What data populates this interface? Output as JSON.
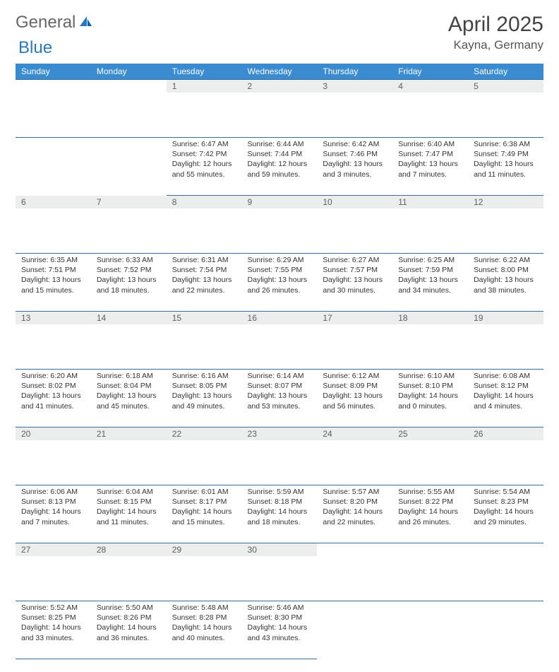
{
  "brand": {
    "part1": "General",
    "part2": "Blue"
  },
  "title": "April 2025",
  "location": "Kayna, Germany",
  "dayHeaders": [
    "Sunday",
    "Monday",
    "Tuesday",
    "Wednesday",
    "Thursday",
    "Friday",
    "Saturday"
  ],
  "colors": {
    "header_bg": "#3a8bd0",
    "header_fg": "#ffffff",
    "daynum_bg": "#eceeee",
    "daynum_fg": "#5a5e62",
    "border": "#3a6a9a",
    "brand_blue": "#2b78c2"
  },
  "weeks": [
    [
      null,
      null,
      {
        "n": "1",
        "sr": "Sunrise: 6:47 AM",
        "ss": "Sunset: 7:42 PM",
        "dl": "Daylight: 12 hours and 55 minutes."
      },
      {
        "n": "2",
        "sr": "Sunrise: 6:44 AM",
        "ss": "Sunset: 7:44 PM",
        "dl": "Daylight: 12 hours and 59 minutes."
      },
      {
        "n": "3",
        "sr": "Sunrise: 6:42 AM",
        "ss": "Sunset: 7:46 PM",
        "dl": "Daylight: 13 hours and 3 minutes."
      },
      {
        "n": "4",
        "sr": "Sunrise: 6:40 AM",
        "ss": "Sunset: 7:47 PM",
        "dl": "Daylight: 13 hours and 7 minutes."
      },
      {
        "n": "5",
        "sr": "Sunrise: 6:38 AM",
        "ss": "Sunset: 7:49 PM",
        "dl": "Daylight: 13 hours and 11 minutes."
      }
    ],
    [
      {
        "n": "6",
        "sr": "Sunrise: 6:35 AM",
        "ss": "Sunset: 7:51 PM",
        "dl": "Daylight: 13 hours and 15 minutes."
      },
      {
        "n": "7",
        "sr": "Sunrise: 6:33 AM",
        "ss": "Sunset: 7:52 PM",
        "dl": "Daylight: 13 hours and 18 minutes."
      },
      {
        "n": "8",
        "sr": "Sunrise: 6:31 AM",
        "ss": "Sunset: 7:54 PM",
        "dl": "Daylight: 13 hours and 22 minutes."
      },
      {
        "n": "9",
        "sr": "Sunrise: 6:29 AM",
        "ss": "Sunset: 7:55 PM",
        "dl": "Daylight: 13 hours and 26 minutes."
      },
      {
        "n": "10",
        "sr": "Sunrise: 6:27 AM",
        "ss": "Sunset: 7:57 PM",
        "dl": "Daylight: 13 hours and 30 minutes."
      },
      {
        "n": "11",
        "sr": "Sunrise: 6:25 AM",
        "ss": "Sunset: 7:59 PM",
        "dl": "Daylight: 13 hours and 34 minutes."
      },
      {
        "n": "12",
        "sr": "Sunrise: 6:22 AM",
        "ss": "Sunset: 8:00 PM",
        "dl": "Daylight: 13 hours and 38 minutes."
      }
    ],
    [
      {
        "n": "13",
        "sr": "Sunrise: 6:20 AM",
        "ss": "Sunset: 8:02 PM",
        "dl": "Daylight: 13 hours and 41 minutes."
      },
      {
        "n": "14",
        "sr": "Sunrise: 6:18 AM",
        "ss": "Sunset: 8:04 PM",
        "dl": "Daylight: 13 hours and 45 minutes."
      },
      {
        "n": "15",
        "sr": "Sunrise: 6:16 AM",
        "ss": "Sunset: 8:05 PM",
        "dl": "Daylight: 13 hours and 49 minutes."
      },
      {
        "n": "16",
        "sr": "Sunrise: 6:14 AM",
        "ss": "Sunset: 8:07 PM",
        "dl": "Daylight: 13 hours and 53 minutes."
      },
      {
        "n": "17",
        "sr": "Sunrise: 6:12 AM",
        "ss": "Sunset: 8:09 PM",
        "dl": "Daylight: 13 hours and 56 minutes."
      },
      {
        "n": "18",
        "sr": "Sunrise: 6:10 AM",
        "ss": "Sunset: 8:10 PM",
        "dl": "Daylight: 14 hours and 0 minutes."
      },
      {
        "n": "19",
        "sr": "Sunrise: 6:08 AM",
        "ss": "Sunset: 8:12 PM",
        "dl": "Daylight: 14 hours and 4 minutes."
      }
    ],
    [
      {
        "n": "20",
        "sr": "Sunrise: 6:06 AM",
        "ss": "Sunset: 8:13 PM",
        "dl": "Daylight: 14 hours and 7 minutes."
      },
      {
        "n": "21",
        "sr": "Sunrise: 6:04 AM",
        "ss": "Sunset: 8:15 PM",
        "dl": "Daylight: 14 hours and 11 minutes."
      },
      {
        "n": "22",
        "sr": "Sunrise: 6:01 AM",
        "ss": "Sunset: 8:17 PM",
        "dl": "Daylight: 14 hours and 15 minutes."
      },
      {
        "n": "23",
        "sr": "Sunrise: 5:59 AM",
        "ss": "Sunset: 8:18 PM",
        "dl": "Daylight: 14 hours and 18 minutes."
      },
      {
        "n": "24",
        "sr": "Sunrise: 5:57 AM",
        "ss": "Sunset: 8:20 PM",
        "dl": "Daylight: 14 hours and 22 minutes."
      },
      {
        "n": "25",
        "sr": "Sunrise: 5:55 AM",
        "ss": "Sunset: 8:22 PM",
        "dl": "Daylight: 14 hours and 26 minutes."
      },
      {
        "n": "26",
        "sr": "Sunrise: 5:54 AM",
        "ss": "Sunset: 8:23 PM",
        "dl": "Daylight: 14 hours and 29 minutes."
      }
    ],
    [
      {
        "n": "27",
        "sr": "Sunrise: 5:52 AM",
        "ss": "Sunset: 8:25 PM",
        "dl": "Daylight: 14 hours and 33 minutes."
      },
      {
        "n": "28",
        "sr": "Sunrise: 5:50 AM",
        "ss": "Sunset: 8:26 PM",
        "dl": "Daylight: 14 hours and 36 minutes."
      },
      {
        "n": "29",
        "sr": "Sunrise: 5:48 AM",
        "ss": "Sunset: 8:28 PM",
        "dl": "Daylight: 14 hours and 40 minutes."
      },
      {
        "n": "30",
        "sr": "Sunrise: 5:46 AM",
        "ss": "Sunset: 8:30 PM",
        "dl": "Daylight: 14 hours and 43 minutes."
      },
      null,
      null,
      null
    ]
  ]
}
